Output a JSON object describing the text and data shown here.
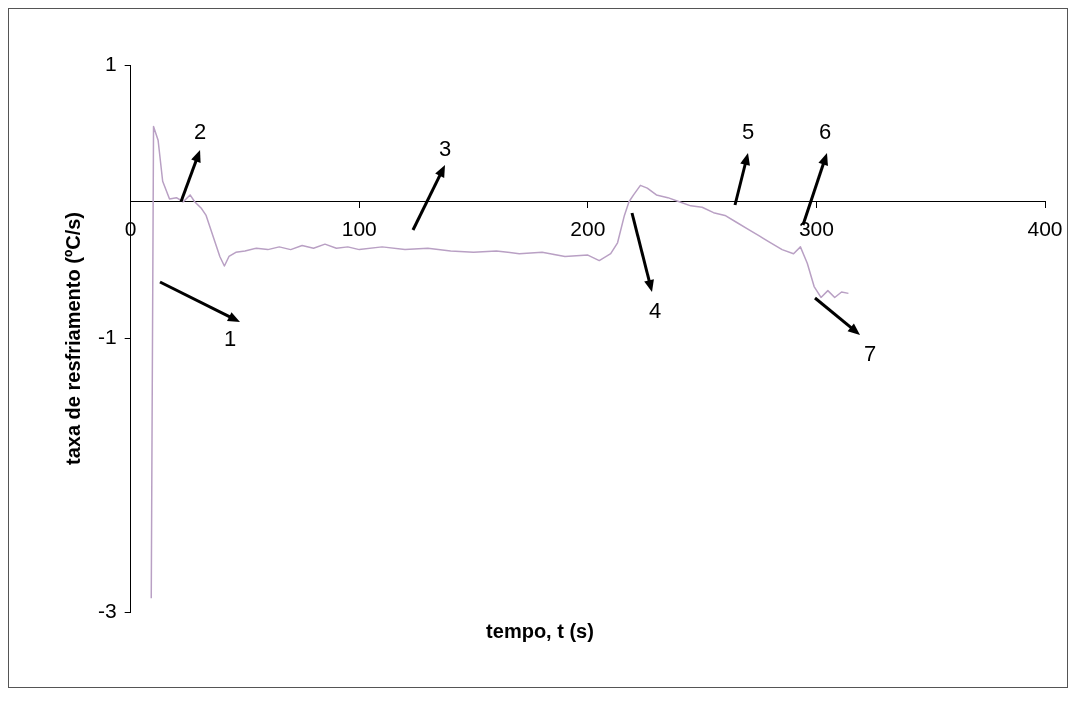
{
  "chart_data": {
    "type": "line",
    "xlabel": "tempo, t (s)",
    "ylabel": "taxa de resfriamento (ºC/s)",
    "xlim": [
      0,
      400
    ],
    "xticks": [
      0,
      100,
      200,
      300,
      400
    ],
    "ylim": [
      -3,
      1
    ],
    "yticks": [
      -3,
      -1,
      1
    ],
    "grid": false,
    "legend": false,
    "marker": "none",
    "series": [
      {
        "color": "#b9a0c4",
        "x": [
          9,
          10,
          12,
          14,
          17,
          20,
          23,
          26,
          28,
          31,
          33,
          36,
          39,
          41,
          43,
          46,
          50,
          55,
          60,
          65,
          70,
          75,
          80,
          85,
          90,
          95,
          100,
          110,
          120,
          130,
          140,
          150,
          160,
          170,
          180,
          190,
          200,
          205,
          210,
          213,
          216,
          218,
          220,
          223,
          226,
          230,
          235,
          240,
          245,
          250,
          255,
          260,
          265,
          270,
          275,
          280,
          285,
          290,
          293,
          296,
          299,
          302,
          305,
          308,
          311,
          314
        ],
        "values": [
          -2.9,
          0.55,
          0.45,
          0.15,
          0.02,
          0.03,
          0,
          0.05,
          0,
          -0.05,
          -0.1,
          -0.25,
          -0.4,
          -0.47,
          -0.4,
          -0.37,
          -0.36,
          -0.34,
          -0.35,
          -0.33,
          -0.35,
          -0.32,
          -0.34,
          -0.31,
          -0.34,
          -0.33,
          -0.35,
          -0.33,
          -0.35,
          -0.34,
          -0.36,
          -0.37,
          -0.36,
          -0.38,
          -0.37,
          -0.4,
          -0.39,
          -0.43,
          -0.38,
          -0.3,
          -0.1,
          0,
          0.05,
          0.12,
          0.1,
          0.05,
          0.03,
          0,
          -0.03,
          -0.04,
          -0.08,
          -0.1,
          -0.15,
          -0.2,
          -0.25,
          -0.3,
          -0.35,
          -0.38,
          -0.33,
          -0.45,
          -0.62,
          -0.7,
          -0.65,
          -0.7,
          -0.66,
          -0.67
        ]
      }
    ],
    "annotations": [
      "1",
      {
        "text": "2",
        "x": 22,
        "y": 0
      },
      "3",
      "4",
      "5",
      "6",
      "7"
    ]
  }
}
